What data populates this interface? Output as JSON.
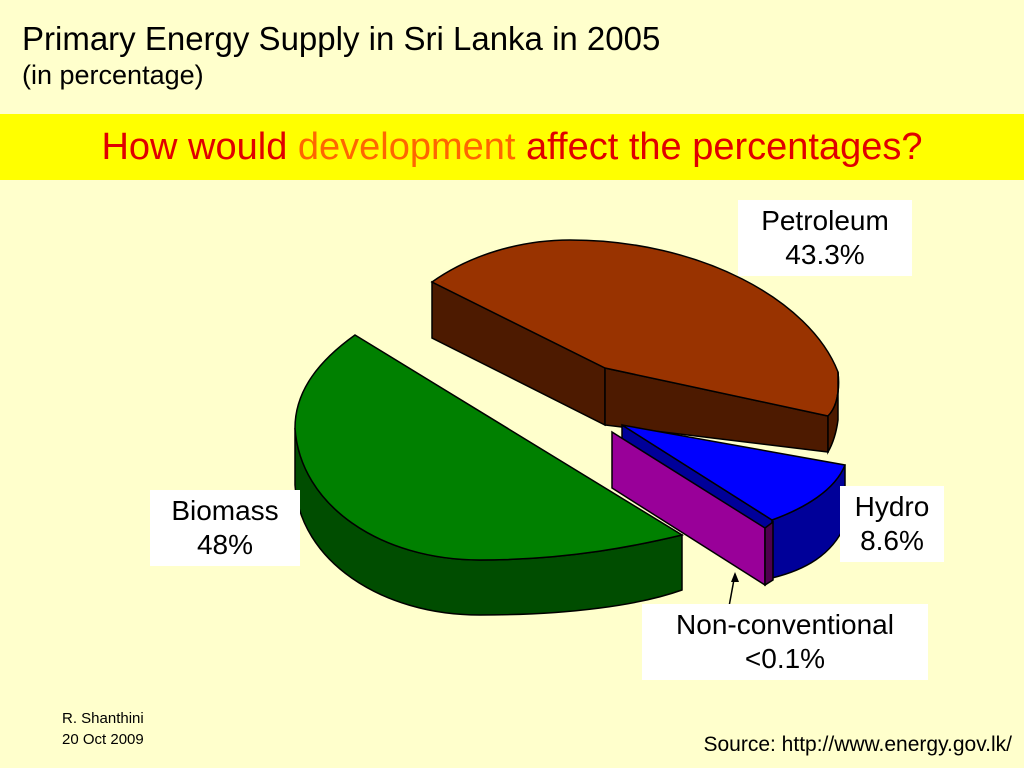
{
  "slide": {
    "title": "Primary Energy Supply in Sri Lanka in 2005",
    "subtitle": "(in percentage)",
    "question_part1": "How would ",
    "question_emph": "development",
    "question_part2": " affect the percentages?",
    "credit_name": "R. Shanthini",
    "credit_date": "20 Oct 2009",
    "source": "Source: http://www.energy.gov.lk/"
  },
  "chart_data": {
    "type": "pie",
    "title": "Primary Energy Supply in Sri Lanka in 2005",
    "subtitle": "(in percentage)",
    "style": "3d-exploded",
    "slices": [
      {
        "name": "Petroleum",
        "value_label": "43.3%",
        "value": 43.3,
        "color": "#993300"
      },
      {
        "name": "Hydro",
        "value_label": "8.6%",
        "value": 8.6,
        "color": "#0000ff"
      },
      {
        "name": "Non-conventional",
        "value_label": "<0.1%",
        "value": 0.1,
        "color": "#990099"
      },
      {
        "name": "Biomass",
        "value_label": "48%",
        "value": 48,
        "color": "#008000"
      }
    ]
  }
}
